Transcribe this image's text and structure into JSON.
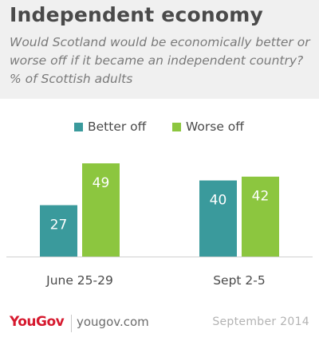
{
  "header": {
    "title": "Independent economy",
    "subtitle": "Would Scotland would be economically better or worse off if it became an independent country? % of Scottish adults"
  },
  "colors": {
    "better": "#3a9a9c",
    "worse": "#8cc63f",
    "header_bg": "#f0f0f0",
    "brand": "#d6192e"
  },
  "chart_data": {
    "type": "bar",
    "categories": [
      "June 25-29",
      "Sept 2-5"
    ],
    "series": [
      {
        "name": "Better off",
        "values": [
          27,
          40
        ]
      },
      {
        "name": "Worse off",
        "values": [
          49,
          42
        ]
      }
    ],
    "ylim": [
      0,
      60
    ],
    "grid": false,
    "legend": "top-center",
    "data_labels": true
  },
  "footer": {
    "logo": "YouGov",
    "site": "yougov.com",
    "date": "September 2014"
  }
}
